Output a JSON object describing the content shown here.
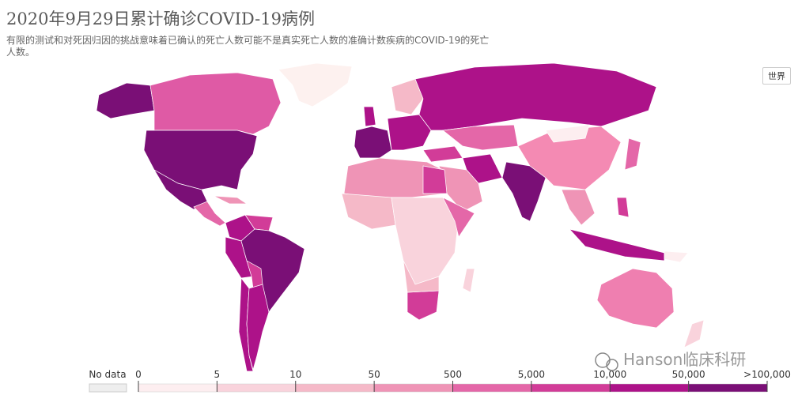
{
  "header": {
    "title": "2020年9月29日累计确诊COVID-19病例",
    "subtitle": "有限的测试和对死因归因的挑战意味着已确认的死亡人数可能不是真实死亡人数的准确计数疾病的COVID-19的死亡人数。"
  },
  "region_button": "世界",
  "legend": {
    "no_data": {
      "label": "No data",
      "color": "#eeeeee"
    },
    "ticks": [
      "0",
      "5",
      "10",
      "50",
      "500",
      "5,000",
      "10,000",
      "50,000",
      ">100,000"
    ],
    "colors": [
      "#fdeef0",
      "#f9d3dc",
      "#f5b9c8",
      "#ef94b6",
      "#e467a8",
      "#d23c98",
      "#ad1289",
      "#7a0f76"
    ]
  },
  "watermark": "Hanson临床科研"
}
